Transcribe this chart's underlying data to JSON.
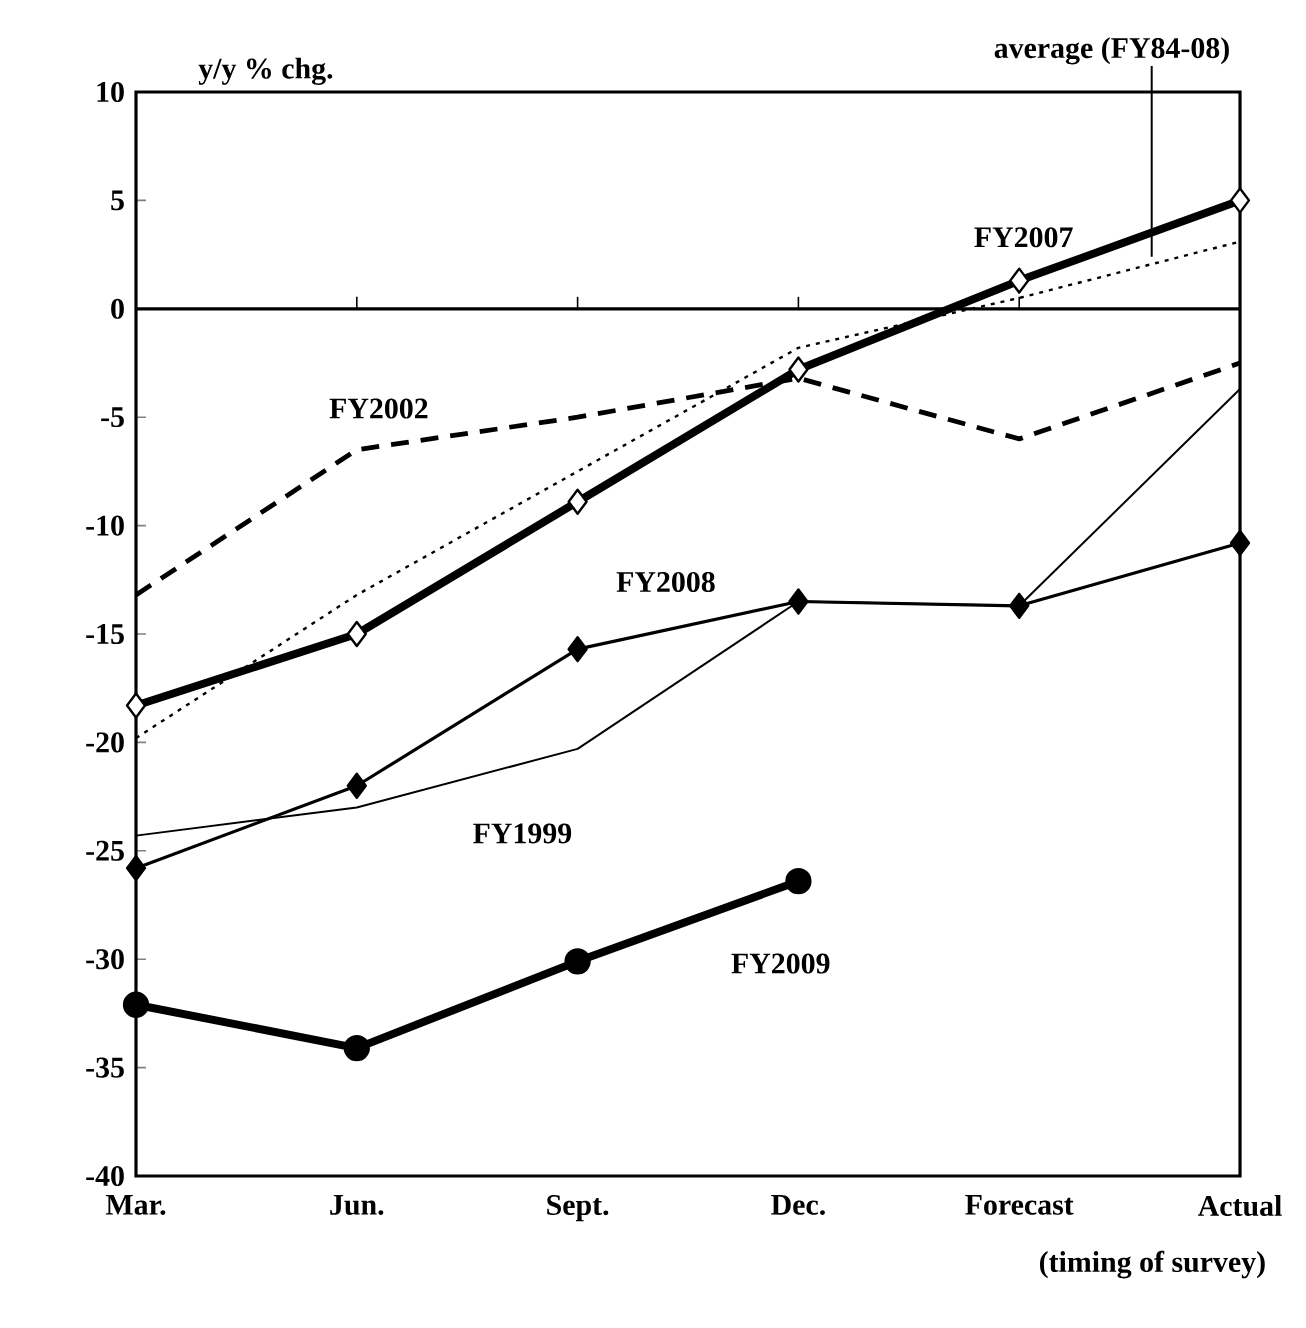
{
  "chart_data": {
    "type": "line",
    "ylabel": "y/y % chg.",
    "xlabel": "(timing of survey)",
    "categories": [
      "Mar.",
      "Jun.",
      "Sept.",
      "Dec.",
      "Forecast",
      "Actual"
    ],
    "ylim": [
      -40,
      10
    ],
    "yticks": [
      -40,
      -35,
      -30,
      -25,
      -20,
      -15,
      -10,
      -5,
      0,
      5,
      10
    ],
    "grid": false,
    "ref_lines": [
      {
        "axis": "y",
        "value": 0
      }
    ],
    "series": [
      {
        "name": "average (FY84-08)",
        "color": "#000000",
        "marker": "none",
        "line_style": "dotted",
        "values": [
          -19.8,
          -13.2,
          -7.5,
          -1.8,
          0.5,
          3.1
        ]
      },
      {
        "name": "FY2002",
        "color": "#000000",
        "marker": "none",
        "line_style": "dashed",
        "values": [
          -13.2,
          -6.5,
          -5,
          -3.2,
          -6,
          -2.5
        ]
      },
      {
        "name": "FY1999",
        "color": "#000000",
        "marker": "none",
        "line_style": "solid",
        "values": [
          -24.3,
          -23,
          -20.3,
          -13.5,
          -13.7,
          -3.7
        ]
      },
      {
        "name": "FY2008",
        "color": "#000000",
        "marker": "diamond",
        "line_style": "solid",
        "values": [
          -25.8,
          -22,
          -15.7,
          -13.5,
          -13.7,
          -10.8
        ]
      },
      {
        "name": "FY2007",
        "color": "#000000",
        "marker": "diamond",
        "line_style": "solid",
        "values": [
          -18.3,
          -15,
          -8.9,
          -2.8,
          1.3,
          5
        ]
      },
      {
        "name": "FY2009",
        "color": "#000000",
        "marker": "circle",
        "line_style": "solid",
        "values": [
          -32.1,
          -34.1,
          -30.1,
          -26.4,
          null,
          null
        ]
      }
    ]
  }
}
